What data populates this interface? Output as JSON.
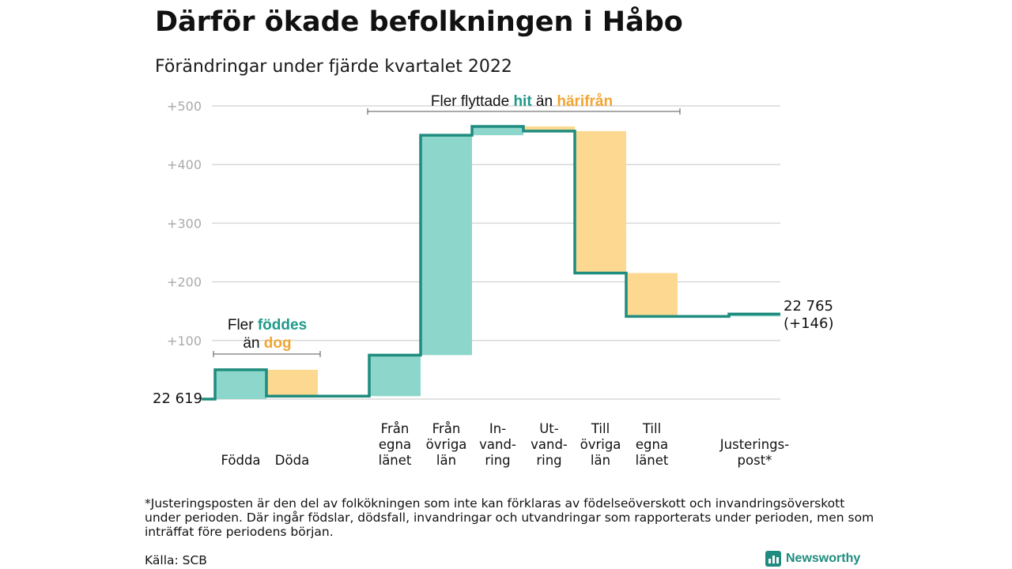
{
  "title": "Därför ökade befolkningen i Håbo",
  "subtitle": "Förändringar under fjärde kvartalet 2022",
  "chart_data": {
    "type": "waterfall",
    "title": "Därför ökade befolkningen i Håbo",
    "subtitle": "Förändringar under fjärde kvartalet 2022",
    "start_value": 22619,
    "start_label": "22 619",
    "end_label_value": "22 765",
    "end_label_change": "(+146)",
    "y_ticks": [
      100,
      200,
      300,
      400,
      500
    ],
    "y_tick_labels": [
      "+100",
      "+200",
      "+300",
      "+400",
      "+500"
    ],
    "ylim": [
      0,
      500
    ],
    "grid": true,
    "steps": [
      {
        "label_lines": [
          "Födda"
        ],
        "change": 50
      },
      {
        "label_lines": [
          "Döda"
        ],
        "change": -45
      },
      {
        "label_lines": [
          "Från",
          "egna",
          "länet"
        ],
        "change": 70
      },
      {
        "label_lines": [
          "Från",
          "övriga",
          "län"
        ],
        "change": 375
      },
      {
        "label_lines": [
          "In-",
          "vand-",
          "ring"
        ],
        "change": 15
      },
      {
        "label_lines": [
          "Ut-",
          "vand-",
          "ring"
        ],
        "change": -8
      },
      {
        "label_lines": [
          "Till",
          "övriga",
          "län"
        ],
        "change": -242
      },
      {
        "label_lines": [
          "Till",
          "egna",
          "länet"
        ],
        "change": -74
      },
      {
        "label_lines": [
          "Justerings-",
          "post*"
        ],
        "change": 4
      }
    ],
    "annotations": [
      {
        "text_parts": [
          [
            "Fler ",
            "plain"
          ],
          [
            "hit",
            "positive"
          ],
          [
            " än ",
            "plain"
          ],
          [
            "härifrån",
            "negative"
          ]
        ]
      },
      {
        "line1": [
          [
            "Fler ",
            "plain"
          ],
          [
            "föddes",
            "positive"
          ]
        ],
        "line2": [
          [
            "än ",
            "plain"
          ],
          [
            "dog",
            "negative"
          ]
        ]
      }
    ],
    "colors": {
      "positive": "#8dd6cb",
      "negative": "#fdd890",
      "line": "#1e8c7e",
      "positive_text": "#1e9a8a",
      "negative_text": "#f2a531",
      "grid": "#d8d8d8"
    }
  },
  "annotation_top": {
    "pre": "Fler flyttade ",
    "pos": "hit",
    "mid": " än ",
    "neg": "härifrån"
  },
  "annotation_left": {
    "pre1": "Fler ",
    "pos": "föddes",
    "pre2": "än ",
    "neg": "dog"
  },
  "footnote": "*Justeringsposten är den del av folkökningen som inte kan förklaras av födelseöverskott och invandringsöverskott under perioden. Där ingår födslar, dödsfall, invandringar och utvandringar som rapporterats under perioden, men som inträffat före periodens början.",
  "source": "Källa: SCB",
  "brand": {
    "name": "Newsworthy",
    "icon": "newsworthy-chart-icon"
  }
}
